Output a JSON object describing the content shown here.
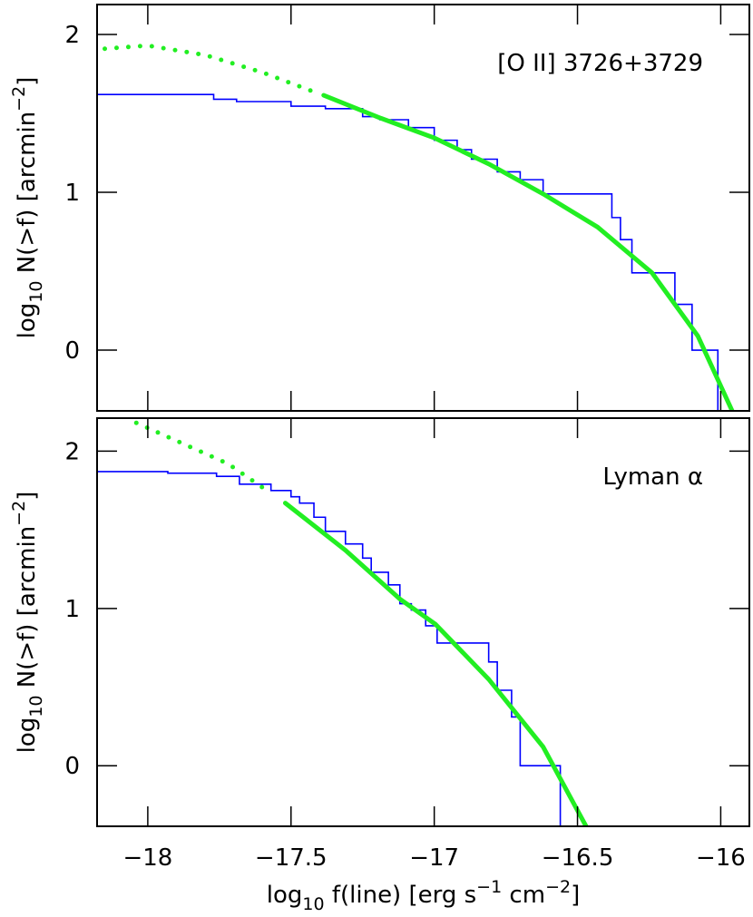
{
  "chart_data": [
    {
      "type": "line",
      "annotation": "[O II] 3726+3729",
      "ylabel": [
        "log",
        "10",
        " N(>f) [arcmin",
        "−2",
        "]"
      ],
      "ylabel_scripts": [
        "normal",
        "sub",
        "normal",
        "super",
        "normal"
      ],
      "xlim": [
        -18.177,
        -15.9
      ],
      "ylim": [
        -0.385,
        2.19
      ],
      "xticks": [
        -18,
        -17.5,
        -17,
        -16.5,
        -16
      ],
      "xtick_labels": false,
      "yticks": [
        0,
        1,
        2
      ],
      "series": [
        {
          "style": "step",
          "color": "#0000ff",
          "x": [
            -18.177,
            -17.77,
            -17.69,
            -17.5,
            -17.38,
            -17.25,
            -17.19,
            -17.09,
            -17.0,
            -16.92,
            -16.87,
            -16.78,
            -16.7,
            -16.62,
            -16.38,
            -16.35,
            -16.31,
            -16.16,
            -16.1,
            -16.01
          ],
          "values": [
            1.62,
            1.59,
            1.575,
            1.546,
            1.53,
            1.48,
            1.46,
            1.41,
            1.33,
            1.27,
            1.21,
            1.13,
            1.08,
            0.99,
            0.84,
            0.7,
            0.49,
            0.29,
            0.0,
            -0.385
          ]
        },
        {
          "style": "dotted",
          "color": "#22ee22",
          "x": [
            -18.15,
            -18.0,
            -17.8,
            -17.6,
            -17.41
          ],
          "values": [
            1.91,
            1.93,
            1.87,
            1.76,
            1.63
          ]
        },
        {
          "style": "solid",
          "color": "#22ee22",
          "x": [
            -17.386,
            -17.187,
            -17.0,
            -16.81,
            -16.62,
            -16.43,
            -16.24,
            -16.08,
            -15.96
          ],
          "values": [
            1.615,
            1.47,
            1.345,
            1.18,
            0.99,
            0.78,
            0.49,
            0.09,
            -0.385
          ]
        }
      ]
    },
    {
      "type": "line",
      "annotation": "Lyman α",
      "ylabel": [
        "log",
        "10",
        " N(>f) [arcmin",
        "−2",
        "]"
      ],
      "ylabel_scripts": [
        "normal",
        "sub",
        "normal",
        "super",
        "normal"
      ],
      "xlabel": [
        "log",
        "10",
        " f(line) [erg s",
        "−1",
        " cm",
        "−2",
        "]"
      ],
      "xlabel_scripts": [
        "normal",
        "sub",
        "normal",
        "super",
        "normal",
        "super",
        "normal"
      ],
      "xlim": [
        -18.177,
        -15.9
      ],
      "ylim": [
        -0.385,
        2.21
      ],
      "xticks": [
        {
          "value": -18,
          "label": "−18"
        },
        {
          "value": -17.5,
          "label": "−17.5"
        },
        {
          "value": -17,
          "label": "−17"
        },
        {
          "value": -16.5,
          "label": "−16.5"
        },
        {
          "value": -16,
          "label": "−16"
        }
      ],
      "yticks": [
        0,
        1,
        2
      ],
      "series": [
        {
          "style": "step",
          "color": "#0000ff",
          "x": [
            -18.177,
            -17.93,
            -17.76,
            -17.68,
            -17.57,
            -17.5,
            -17.47,
            -17.42,
            -17.38,
            -17.31,
            -17.25,
            -17.22,
            -17.16,
            -17.12,
            -17.08,
            -17.03,
            -16.99,
            -16.81,
            -16.78,
            -16.73,
            -16.7,
            -16.56
          ],
          "values": [
            1.87,
            1.86,
            1.84,
            1.79,
            1.75,
            1.71,
            1.67,
            1.58,
            1.49,
            1.41,
            1.32,
            1.23,
            1.15,
            1.03,
            0.99,
            0.89,
            0.78,
            0.66,
            0.48,
            0.31,
            0.0,
            -0.385
          ]
        },
        {
          "style": "dotted",
          "color": "#22ee22",
          "x": [
            -18.04,
            -17.88,
            -17.72,
            -17.6
          ],
          "values": [
            2.18,
            2.05,
            1.92,
            1.77
          ]
        },
        {
          "style": "solid",
          "color": "#22ee22",
          "x": [
            -17.52,
            -17.31,
            -17.12,
            -16.996,
            -16.81,
            -16.62,
            -16.47
          ],
          "values": [
            1.67,
            1.37,
            1.06,
            0.9,
            0.55,
            0.12,
            -0.385
          ]
        }
      ]
    }
  ]
}
